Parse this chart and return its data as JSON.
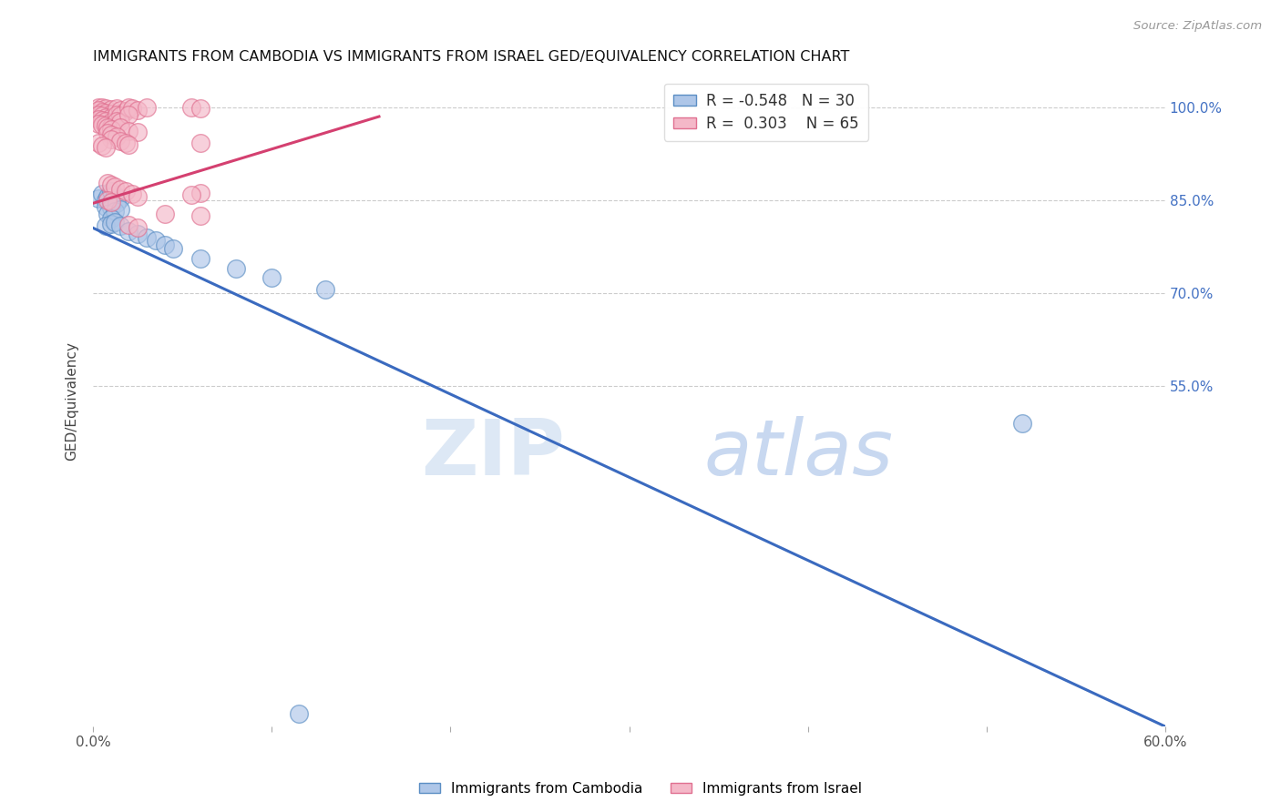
{
  "title": "IMMIGRANTS FROM CAMBODIA VS IMMIGRANTS FROM ISRAEL GED/EQUIVALENCY CORRELATION CHART",
  "source": "Source: ZipAtlas.com",
  "ylabel": "GED/Equivalency",
  "xlim": [
    0.0,
    0.6
  ],
  "ylim": [
    0.0,
    1.05
  ],
  "ytick_vals": [
    0.55,
    0.7,
    0.85,
    1.0
  ],
  "right_ytick_labels": [
    "55.0%",
    "70.0%",
    "85.0%",
    "100.0%"
  ],
  "xtick_vals": [
    0.0,
    0.1,
    0.2,
    0.3,
    0.4,
    0.5,
    0.6
  ],
  "xtick_labels": [
    "0.0%",
    "",
    "",
    "",
    "",
    "",
    "60.0%"
  ],
  "blue_color": "#aec6e8",
  "pink_color": "#f4b8c8",
  "blue_edge_color": "#5b8ec4",
  "pink_edge_color": "#e07090",
  "blue_line_color": "#3a6abf",
  "pink_line_color": "#d44070",
  "legend_R_blue": "-0.548",
  "legend_N_blue": "30",
  "legend_R_pink": "0.303",
  "legend_N_pink": "65",
  "label_blue": "Immigrants from Cambodia",
  "label_pink": "Immigrants from Israel",
  "blue_line_x0": 0.0,
  "blue_line_y0": 0.805,
  "blue_line_x1": 0.6,
  "blue_line_y1": 0.0,
  "pink_line_x0": 0.0,
  "pink_line_y0": 0.845,
  "pink_line_x1": 0.16,
  "pink_line_y1": 0.985,
  "blue_scatter": [
    [
      0.003,
      0.853
    ],
    [
      0.005,
      0.86
    ],
    [
      0.007,
      0.85
    ],
    [
      0.008,
      0.855
    ],
    [
      0.01,
      0.865
    ],
    [
      0.012,
      0.858
    ],
    [
      0.015,
      0.852
    ],
    [
      0.007,
      0.84
    ],
    [
      0.01,
      0.838
    ],
    [
      0.013,
      0.845
    ],
    [
      0.008,
      0.828
    ],
    [
      0.012,
      0.832
    ],
    [
      0.015,
      0.835
    ],
    [
      0.01,
      0.82
    ],
    [
      0.007,
      0.808
    ],
    [
      0.01,
      0.812
    ],
    [
      0.012,
      0.815
    ],
    [
      0.015,
      0.808
    ],
    [
      0.02,
      0.8
    ],
    [
      0.025,
      0.795
    ],
    [
      0.03,
      0.79
    ],
    [
      0.035,
      0.785
    ],
    [
      0.04,
      0.778
    ],
    [
      0.045,
      0.772
    ],
    [
      0.06,
      0.755
    ],
    [
      0.08,
      0.74
    ],
    [
      0.1,
      0.725
    ],
    [
      0.13,
      0.705
    ],
    [
      0.52,
      0.49
    ],
    [
      0.115,
      0.02
    ]
  ],
  "pink_scatter": [
    [
      0.003,
      1.0
    ],
    [
      0.005,
      1.0
    ],
    [
      0.007,
      0.998
    ],
    [
      0.01,
      0.997
    ],
    [
      0.003,
      0.995
    ],
    [
      0.005,
      0.993
    ],
    [
      0.007,
      0.991
    ],
    [
      0.01,
      0.99
    ],
    [
      0.003,
      0.988
    ],
    [
      0.005,
      0.986
    ],
    [
      0.007,
      0.984
    ],
    [
      0.01,
      0.983
    ],
    [
      0.003,
      0.981
    ],
    [
      0.005,
      0.979
    ],
    [
      0.007,
      0.977
    ],
    [
      0.01,
      0.976
    ],
    [
      0.003,
      0.974
    ],
    [
      0.005,
      0.972
    ],
    [
      0.007,
      0.97
    ],
    [
      0.01,
      0.969
    ],
    [
      0.013,
      0.998
    ],
    [
      0.015,
      0.996
    ],
    [
      0.018,
      0.994
    ],
    [
      0.013,
      0.988
    ],
    [
      0.015,
      0.986
    ],
    [
      0.013,
      0.978
    ],
    [
      0.015,
      0.976
    ],
    [
      0.02,
      1.0
    ],
    [
      0.022,
      0.998
    ],
    [
      0.025,
      0.995
    ],
    [
      0.02,
      0.988
    ],
    [
      0.03,
      1.0
    ],
    [
      0.055,
      1.0
    ],
    [
      0.06,
      0.998
    ],
    [
      0.008,
      0.968
    ],
    [
      0.01,
      0.965
    ],
    [
      0.015,
      0.968
    ],
    [
      0.02,
      0.962
    ],
    [
      0.025,
      0.96
    ],
    [
      0.008,
      0.958
    ],
    [
      0.01,
      0.955
    ],
    [
      0.013,
      0.952
    ],
    [
      0.01,
      0.948
    ],
    [
      0.015,
      0.945
    ],
    [
      0.018,
      0.942
    ],
    [
      0.02,
      0.939
    ],
    [
      0.003,
      0.942
    ],
    [
      0.005,
      0.938
    ],
    [
      0.007,
      0.935
    ],
    [
      0.06,
      0.942
    ],
    [
      0.008,
      0.878
    ],
    [
      0.01,
      0.875
    ],
    [
      0.012,
      0.872
    ],
    [
      0.015,
      0.868
    ],
    [
      0.018,
      0.865
    ],
    [
      0.022,
      0.86
    ],
    [
      0.025,
      0.856
    ],
    [
      0.06,
      0.862
    ],
    [
      0.055,
      0.858
    ],
    [
      0.008,
      0.85
    ],
    [
      0.01,
      0.847
    ],
    [
      0.04,
      0.828
    ],
    [
      0.06,
      0.825
    ],
    [
      0.02,
      0.81
    ],
    [
      0.025,
      0.806
    ]
  ]
}
